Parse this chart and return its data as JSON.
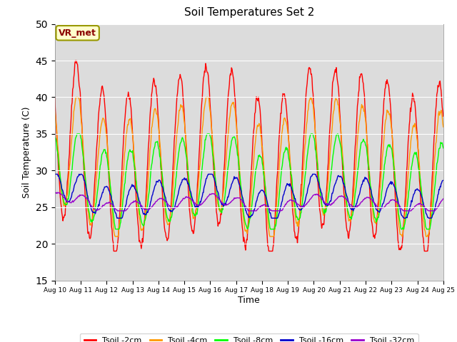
{
  "title": "Soil Temperatures Set 2",
  "xlabel": "Time",
  "ylabel": "Soil Temperature (C)",
  "ylim": [
    15,
    50
  ],
  "yticks": [
    15,
    20,
    25,
    30,
    35,
    40,
    45,
    50
  ],
  "colors": {
    "Tsoil -2cm": "#ff0000",
    "Tsoil -4cm": "#ff9900",
    "Tsoil -8cm": "#00ff00",
    "Tsoil -16cm": "#0000cc",
    "Tsoil -32cm": "#9900cc"
  },
  "background_color": "#dcdcdc",
  "figure_color": "#ffffff",
  "annotation_text": "VR_met",
  "grid_color": "#ffffff"
}
